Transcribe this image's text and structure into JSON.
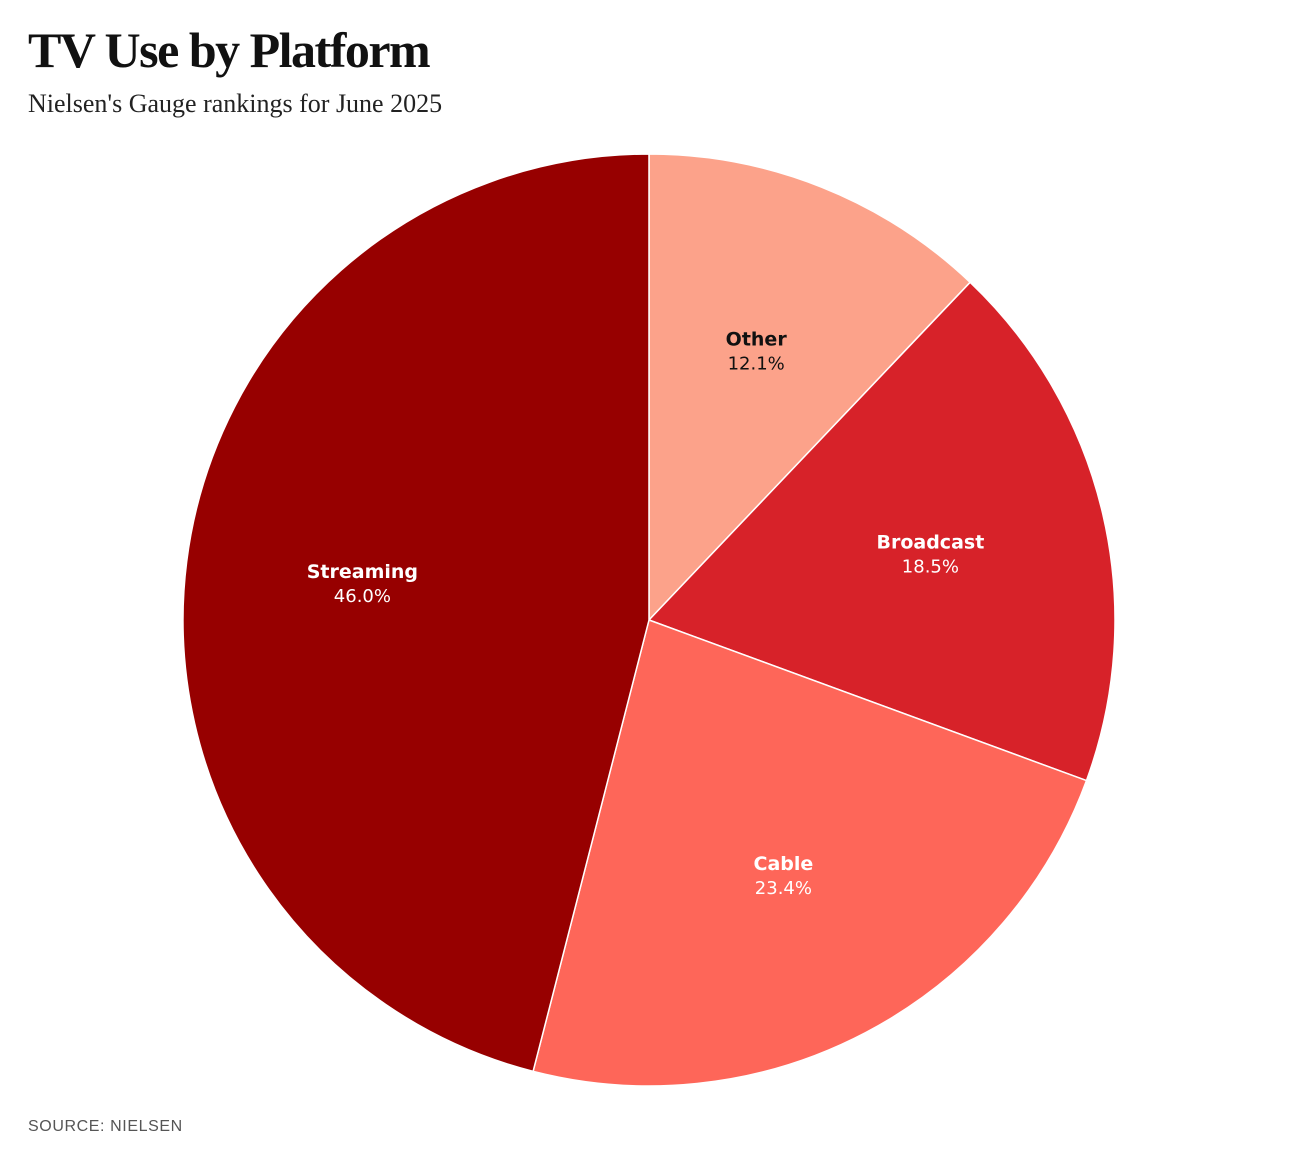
{
  "header": {
    "title": "TV Use by Platform",
    "subtitle": "Nielsen's Gauge rankings for June 2025"
  },
  "footer": {
    "source": "SOURCE: NIELSEN"
  },
  "chart_data": {
    "type": "pie",
    "title": "TV Use by Platform",
    "subtitle": "Nielsen's Gauge rankings for June 2025",
    "start_angle_deg": 0,
    "direction": "clockwise",
    "slices": [
      {
        "label": "Other",
        "value": 12.1,
        "display": "12.1%",
        "color": "#fca28a",
        "text_color": "#111111"
      },
      {
        "label": "Broadcast",
        "value": 18.5,
        "display": "18.5%",
        "color": "#d72229",
        "text_color": "#ffffff"
      },
      {
        "label": "Cable",
        "value": 23.4,
        "display": "23.4%",
        "color": "#fe6659",
        "text_color": "#ffffff"
      },
      {
        "label": "Streaming",
        "value": 46.0,
        "display": "46.0%",
        "color": "#970000",
        "text_color": "#ffffff"
      }
    ],
    "source": "SOURCE: NIELSEN"
  }
}
